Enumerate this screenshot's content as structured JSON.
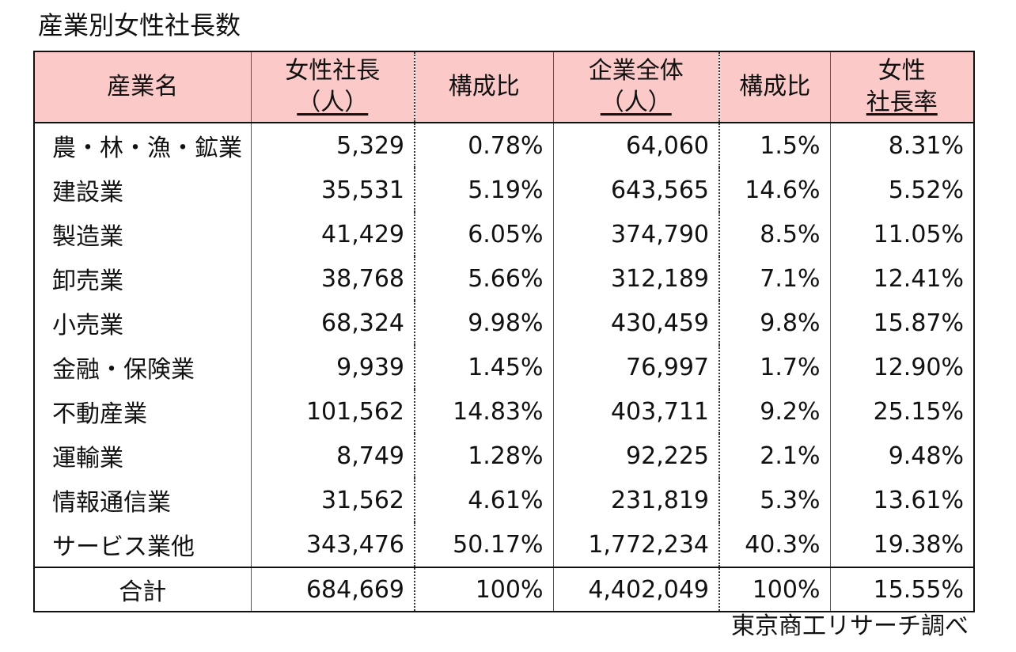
{
  "title": "産業別女性社長数",
  "source": "東京商工リサーチ調べ",
  "colors": {
    "header_bg": "#fcc9c9",
    "border": "#111111"
  },
  "chart_data": {
    "type": "table",
    "title": "産業別女性社長数",
    "headers": [
      {
        "main": "産業名",
        "sub": ""
      },
      {
        "main": "女性社長",
        "sub": "（人）"
      },
      {
        "main": "構成比",
        "sub": ""
      },
      {
        "main": "企業全体",
        "sub": "（人）"
      },
      {
        "main": "構成比",
        "sub": ""
      },
      {
        "main": "女性",
        "sub": "社長率"
      }
    ],
    "rows": [
      [
        "農・林・漁・鉱業",
        "5,329",
        "0.78%",
        "64,060",
        "1.5%",
        "8.31%"
      ],
      [
        "建設業",
        "35,531",
        "5.19%",
        "643,565",
        "14.6%",
        "5.52%"
      ],
      [
        "製造業",
        "41,429",
        "6.05%",
        "374,790",
        "8.5%",
        "11.05%"
      ],
      [
        "卸売業",
        "38,768",
        "5.66%",
        "312,189",
        "7.1%",
        "12.41%"
      ],
      [
        "小売業",
        "68,324",
        "9.98%",
        "430,459",
        "9.8%",
        "15.87%"
      ],
      [
        "金融・保険業",
        "9,939",
        "1.45%",
        "76,997",
        "1.7%",
        "12.90%"
      ],
      [
        "不動産業",
        "101,562",
        "14.83%",
        "403,711",
        "9.2%",
        "25.15%"
      ],
      [
        "運輸業",
        "8,749",
        "1.28%",
        "92,225",
        "2.1%",
        "9.48%"
      ],
      [
        "情報通信業",
        "31,562",
        "4.61%",
        "231,819",
        "5.3%",
        "13.61%"
      ],
      [
        "サービス業他",
        "343,476",
        "50.17%",
        "1,772,234",
        "40.3%",
        "19.38%"
      ]
    ],
    "total": [
      "合計",
      "684,669",
      "100%",
      "4,402,049",
      "100%",
      "15.55%"
    ]
  }
}
